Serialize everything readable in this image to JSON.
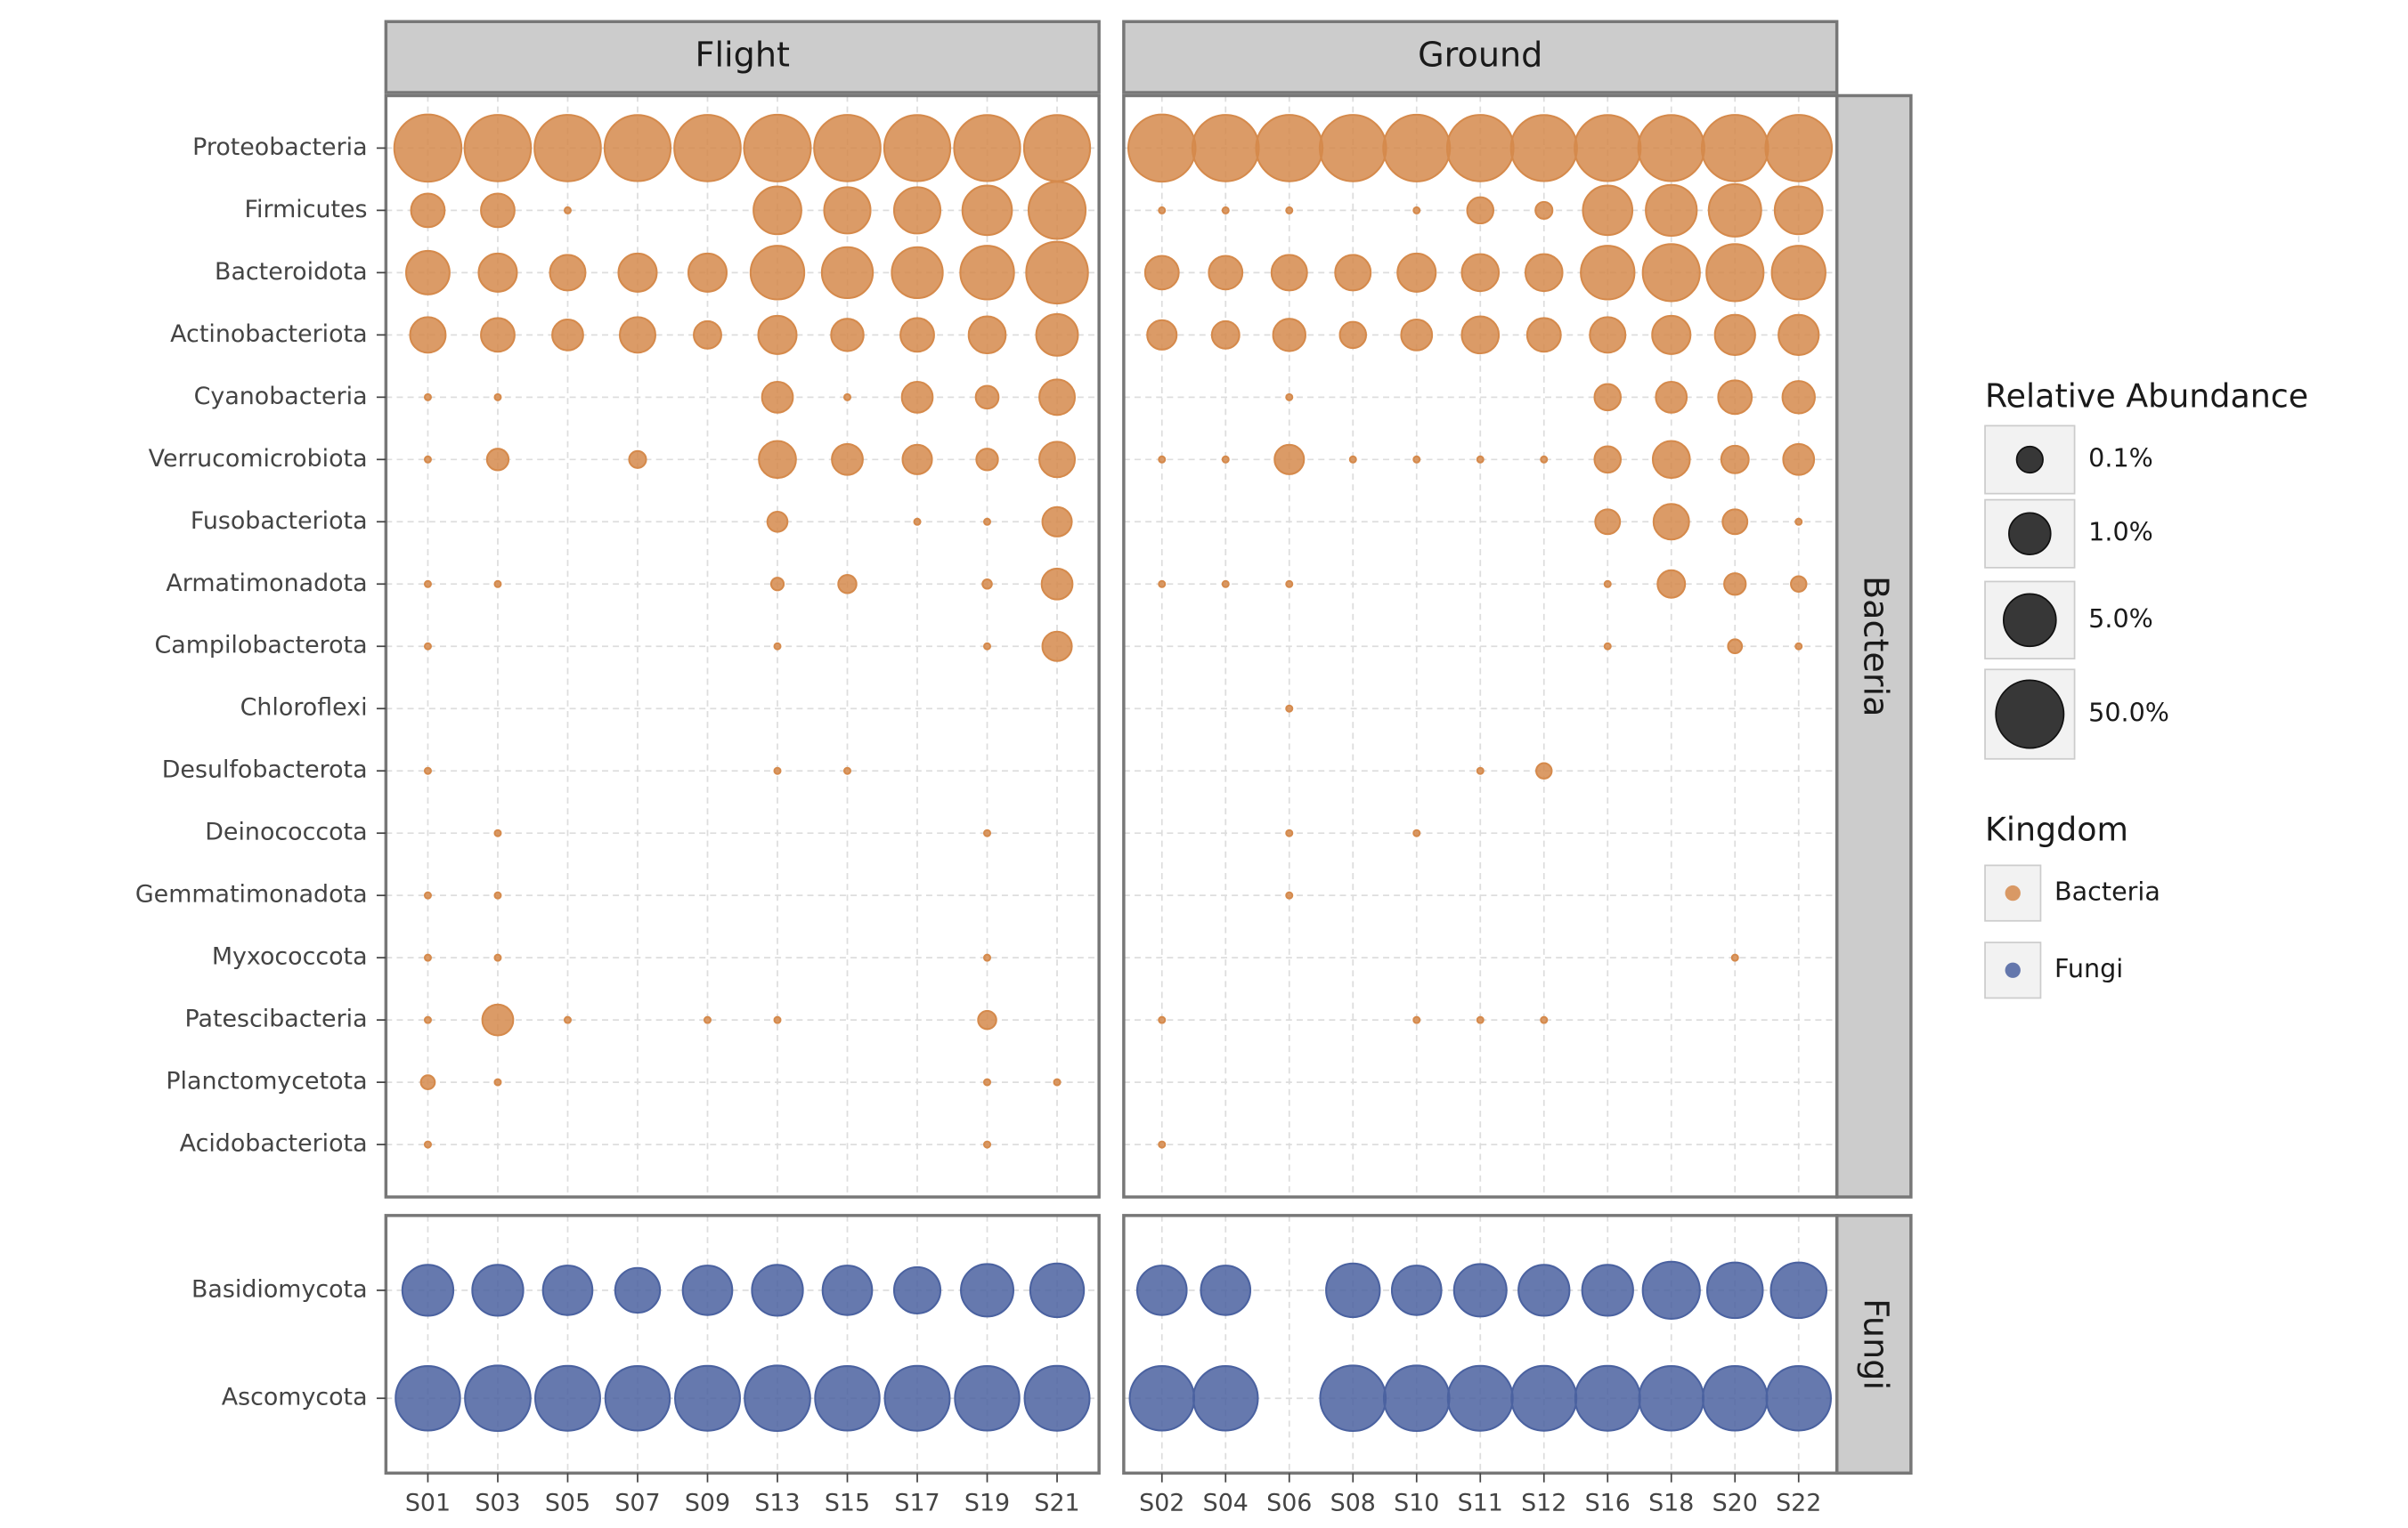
{
  "chart_data": {
    "type": "bubble",
    "facets": [
      "Flight",
      "Ground"
    ],
    "x": [
      [
        "S01",
        "S03",
        "S05",
        "S07",
        "S09",
        "S13",
        "S15",
        "S17",
        "S19",
        "S21"
      ],
      [
        "S02",
        "S04",
        "S06",
        "S08",
        "S10",
        "S11",
        "S12",
        "S16",
        "S18",
        "S20",
        "S22"
      ]
    ],
    "size_legend_title": "Relative Abundance",
    "size_legend": [
      {
        "value": 0.1,
        "label": "0.1%"
      },
      {
        "value": 1.0,
        "label": "1.0%"
      },
      {
        "value": 5.0,
        "label": "5.0%"
      },
      {
        "value": 50.0,
        "label": "50.0%"
      }
    ],
    "color_legend_title": "Kingdom",
    "grid": true,
    "series": [
      {
        "name": "Bacteria",
        "color": "#d58a4c",
        "categories": [
          "Proteobacteria",
          "Firmicutes",
          "Bacteroidota",
          "Actinobacteriota",
          "Cyanobacteria",
          "Verrucomicrobiota",
          "Fusobacteriota",
          "Armatimonadota",
          "Campilobacterota",
          "Chloroflexi",
          "Desulfobacterota",
          "Deinococcota",
          "Gemmatimonadota",
          "Myxococcota",
          "Patescibacteria",
          "Planctomycetota",
          "Acidobacteriota"
        ],
        "values": [
          [
            [
              45,
              40,
              40,
              38,
              40,
              42,
              40,
              38,
              38,
              38
            ],
            [
              0.3,
              0.3,
              0.005,
              null,
              null,
              2.5,
              2,
              2,
              3.2,
              10
            ],
            [
              1.3,
              0.6,
              0.4,
              0.6,
              0.6,
              6,
              4,
              4,
              6,
              20
            ],
            [
              0.4,
              0.3,
              0.2,
              0.4,
              0.12,
              0.6,
              0.25,
              0.3,
              0.5,
              1
            ],
            [
              0.005,
              0.005,
              null,
              null,
              null,
              0.2,
              0.005,
              0.2,
              0.06,
              0.4
            ],
            [
              0.005,
              0.05,
              null,
              0.025,
              null,
              0.5,
              0.2,
              0.16,
              0.05,
              0.4
            ],
            [
              null,
              null,
              null,
              null,
              null,
              0.04,
              null,
              0.005,
              0.005,
              0.16
            ],
            [
              0.005,
              0.005,
              null,
              null,
              null,
              0.013,
              0.03,
              null,
              0.008,
              0.2
            ],
            [
              0.005,
              null,
              null,
              null,
              null,
              0.005,
              null,
              null,
              0.005,
              0.16
            ],
            [
              null,
              null,
              null,
              null,
              null,
              null,
              null,
              null,
              null,
              null
            ],
            [
              0.005,
              null,
              null,
              null,
              null,
              0.005,
              0.005,
              null,
              null,
              null
            ],
            [
              null,
              0.005,
              null,
              null,
              null,
              null,
              null,
              null,
              0.005,
              null
            ],
            [
              0.005,
              0.005,
              null,
              null,
              null,
              null,
              null,
              null,
              null,
              null
            ],
            [
              0.005,
              0.005,
              null,
              null,
              null,
              null,
              null,
              null,
              0.005,
              null
            ],
            [
              0.005,
              0.2,
              0.005,
              null,
              0.005,
              0.005,
              null,
              null,
              0.03,
              null
            ],
            [
              0.016,
              0.005,
              null,
              null,
              null,
              null,
              null,
              null,
              0.005,
              0.005
            ],
            [
              0.005,
              null,
              null,
              null,
              null,
              null,
              null,
              null,
              0.005,
              null
            ]
          ],
          [
            [
              45,
              40,
              40,
              40,
              42,
              40,
              38,
              38,
              38,
              40,
              40
            ],
            [
              0.005,
              0.005,
              0.005,
              null,
              0.005,
              0.1,
              0.025,
              3.2,
              4,
              5,
              2.5
            ],
            [
              0.3,
              0.3,
              0.4,
              0.4,
              0.6,
              0.5,
              0.5,
              6,
              10,
              10,
              6
            ],
            [
              0.16,
              0.12,
              0.25,
              0.1,
              0.2,
              0.5,
              0.3,
              0.4,
              0.6,
              0.8,
              0.8
            ],
            [
              null,
              null,
              0.005,
              null,
              null,
              null,
              null,
              0.1,
              0.2,
              0.3,
              0.25
            ],
            [
              0.005,
              0.005,
              0.16,
              0.005,
              0.005,
              0.005,
              0.005,
              0.1,
              0.5,
              0.12,
              0.2
            ],
            [
              null,
              null,
              null,
              null,
              null,
              null,
              null,
              0.08,
              0.4,
              0.08,
              0.005
            ],
            [
              0.005,
              0.005,
              0.005,
              null,
              null,
              null,
              null,
              0.005,
              0.12,
              0.05,
              0.02
            ],
            [
              null,
              null,
              null,
              null,
              null,
              null,
              null,
              0.005,
              null,
              0.016,
              0.005
            ],
            [
              null,
              null,
              0.005,
              null,
              null,
              null,
              null,
              null,
              null,
              null,
              null
            ],
            [
              null,
              null,
              null,
              null,
              null,
              0.005,
              0.02,
              null,
              null,
              null,
              null
            ],
            [
              null,
              null,
              0.005,
              null,
              0.005,
              null,
              null,
              null,
              null,
              null,
              null
            ],
            [
              null,
              null,
              0.005,
              null,
              null,
              null,
              null,
              null,
              null,
              null,
              null
            ],
            [
              null,
              null,
              null,
              null,
              null,
              null,
              null,
              null,
              null,
              0.005,
              null
            ],
            [
              0.005,
              null,
              null,
              null,
              0.005,
              0.005,
              0.005,
              null,
              null,
              null,
              null
            ],
            [
              null,
              null,
              null,
              null,
              null,
              null,
              null,
              null,
              null,
              null,
              null
            ],
            [
              0.005,
              null,
              null,
              null,
              null,
              null,
              null,
              null,
              null,
              null,
              null
            ]
          ]
        ]
      },
      {
        "name": "Fungi",
        "color": "#4b62a0",
        "categories": [
          "Basidiomycota",
          "Ascomycota"
        ],
        "values": [
          [
            [
              4,
              4,
              3.2,
              1.6,
              3.2,
              4,
              3.2,
              2,
              5,
              6
            ],
            [
              30,
              35,
              32,
              30,
              32,
              35,
              30,
              32,
              30,
              32
            ]
          ],
          [
            [
              3.2,
              3.2,
              null,
              6,
              3.2,
              5,
              4,
              4,
              10,
              8,
              8
            ],
            [
              30,
              30,
              null,
              35,
              35,
              32,
              32,
              32,
              30,
              30,
              30
            ]
          ]
        ]
      }
    ]
  }
}
